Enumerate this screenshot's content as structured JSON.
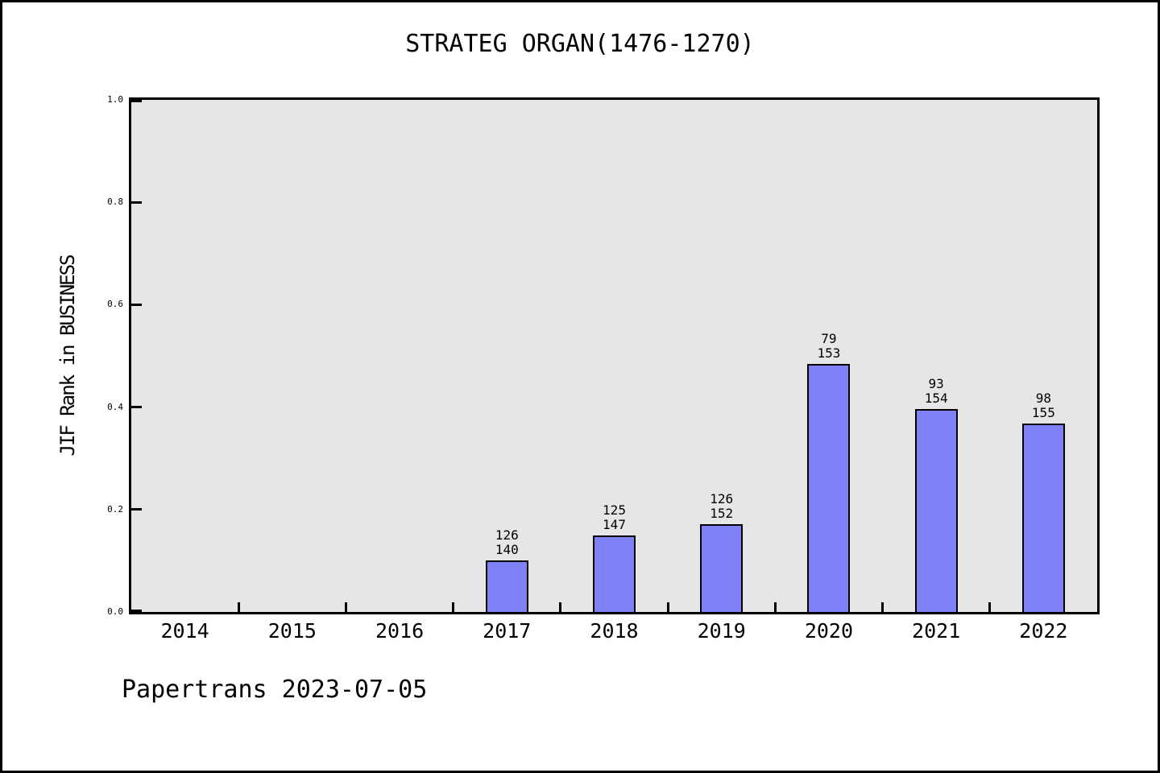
{
  "chart_data": {
    "type": "bar",
    "title": "STRATEG ORGAN(1476-1270)",
    "ylabel": "JIF Rank in BUSINESS",
    "xlabel": "",
    "ylim": [
      0.0,
      1.0
    ],
    "yticks": [
      "0.0",
      "0.2",
      "0.4",
      "0.6",
      "0.8",
      "1.0"
    ],
    "categories": [
      "2014",
      "2015",
      "2016",
      "2017",
      "2018",
      "2019",
      "2020",
      "2021",
      "2022"
    ],
    "bars": [
      {
        "category": "2017",
        "rank": 126,
        "total": 140,
        "value": 0.1
      },
      {
        "category": "2018",
        "rank": 125,
        "total": 147,
        "value": 0.15
      },
      {
        "category": "2019",
        "rank": 126,
        "total": 152,
        "value": 0.171
      },
      {
        "category": "2020",
        "rank": 79,
        "total": 153,
        "value": 0.484
      },
      {
        "category": "2021",
        "rank": 93,
        "total": 154,
        "value": 0.396
      },
      {
        "category": "2022",
        "rank": 98,
        "total": 155,
        "value": 0.368
      }
    ],
    "grid": false,
    "legend": false,
    "colors": {
      "bar_fill": "#8080f7",
      "bar_outline": "#000000",
      "plot_bg": "#e6e6e6",
      "frame": "#000000",
      "text": "#000000"
    },
    "annotation": "Papertrans 2023-07-05"
  }
}
